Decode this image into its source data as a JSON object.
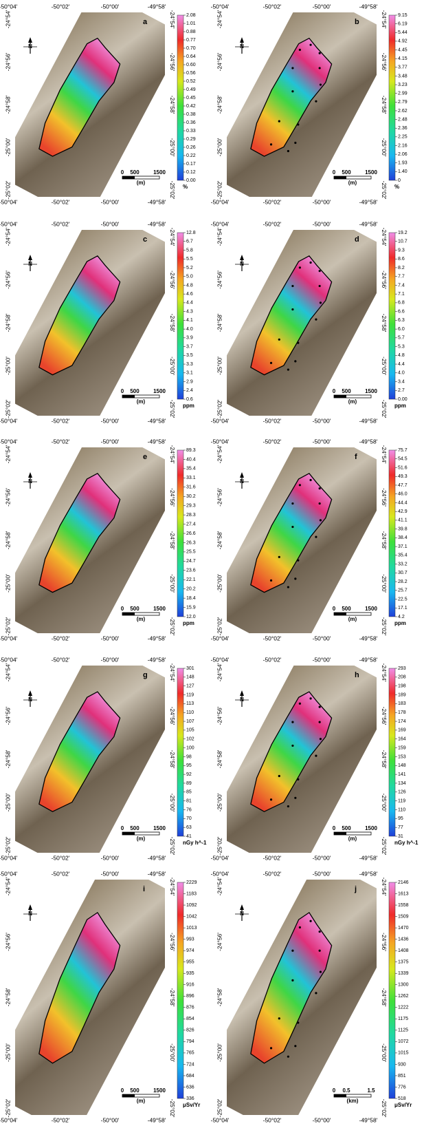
{
  "lon_labels": [
    "-50°04'",
    "-50°02'",
    "-50°00'",
    "-49°58'"
  ],
  "lat_labels": [
    "-24°54'",
    "-24°56'",
    "-24°58'",
    "-25°00'",
    "-25°02'"
  ],
  "north": "N",
  "panels": [
    {
      "letter": "a",
      "unit": "%",
      "scale": [
        "0",
        "500",
        "1500",
        "(m)"
      ],
      "colorbar": [
        "2.08",
        "1.01",
        "0.88",
        "0.77",
        "0.70",
        "0.64",
        "0.60",
        "0.56",
        "0.52",
        "0.49",
        "0.45",
        "0.42",
        "0.38",
        "0.36",
        "0.33",
        "0.29",
        "0.26",
        "0.22",
        "0.17",
        "0.12",
        "0.00"
      ]
    },
    {
      "letter": "b",
      "unit": "%",
      "scale": [
        "0",
        "500",
        "1500",
        "(m)"
      ],
      "colorbar": [
        "9.15",
        "6.19",
        "5.44",
        "4.92",
        "4.45",
        "4.15",
        "3.77",
        "3.48",
        "3.23",
        "2.99",
        "2.79",
        "2.62",
        "2.48",
        "2.36",
        "2.25",
        "2.16",
        "2.06",
        "1.93",
        "1.40",
        "0"
      ]
    },
    {
      "letter": "c",
      "unit": "ppm",
      "scale": [
        "0",
        "500",
        "1500",
        "(m)"
      ],
      "colorbar": [
        "12.8",
        "6.7",
        "5.8",
        "5.5",
        "5.2",
        "5.0",
        "4.8",
        "4.6",
        "4.4",
        "4.3",
        "4.1",
        "4.0",
        "3.9",
        "3.7",
        "3.5",
        "3.3",
        "3.1",
        "2.9",
        "2.4",
        "0.6"
      ]
    },
    {
      "letter": "d",
      "unit": "ppm",
      "scale": [
        "0",
        "500",
        "1500",
        "(m)"
      ],
      "colorbar": [
        "19.2",
        "10.7",
        "9.3",
        "8.6",
        "8.2",
        "7.7",
        "7.4",
        "7.1",
        "6.8",
        "6.6",
        "6.3",
        "6.0",
        "5.7",
        "5.3",
        "4.8",
        "4.4",
        "4.0",
        "3.4",
        "2.7",
        "0.00"
      ]
    },
    {
      "letter": "e",
      "unit": "ppm",
      "scale": [
        "0",
        "500",
        "1500",
        "(m)"
      ],
      "colorbar": [
        "89.3",
        "40.4",
        "35.4",
        "33.1",
        "31.6",
        "30.2",
        "29.3",
        "28.3",
        "27.4",
        "26.6",
        "26.3",
        "25.5",
        "24.7",
        "23.6",
        "22.1",
        "20.2",
        "18.4",
        "15.9",
        "12.0"
      ]
    },
    {
      "letter": "f",
      "unit": "ppm",
      "scale": [
        "0",
        "500",
        "1500",
        "(m)"
      ],
      "colorbar": [
        "75.7",
        "54.5",
        "51.6",
        "49.3",
        "47.7",
        "46.0",
        "44.4",
        "42.9",
        "41.1",
        "39.8",
        "38.4",
        "37.1",
        "35.4",
        "33.2",
        "30.7",
        "28.2",
        "25.7",
        "22.5",
        "17.1",
        "4.2"
      ]
    },
    {
      "letter": "g",
      "unit": "nGy h^-1",
      "scale": [
        "0",
        "500",
        "1500",
        "(m)"
      ],
      "colorbar": [
        "301",
        "148",
        "127",
        "119",
        "113",
        "110",
        "107",
        "105",
        "102",
        "100",
        "98",
        "95",
        "92",
        "89",
        "85",
        "81",
        "76",
        "70",
        "63",
        "41"
      ]
    },
    {
      "letter": "h",
      "unit": "nGy h^-1",
      "scale": [
        "0",
        "500",
        "1500",
        "(m)"
      ],
      "colorbar": [
        "293",
        "208",
        "198",
        "189",
        "183",
        "178",
        "174",
        "169",
        "164",
        "159",
        "153",
        "148",
        "141",
        "134",
        "126",
        "119",
        "110",
        "95",
        "77",
        "31"
      ]
    },
    {
      "letter": "i",
      "unit": "μSv/Yr",
      "scale": [
        "0",
        "500",
        "1500",
        "(m)"
      ],
      "colorbar": [
        "2229",
        "1183",
        "1092",
        "1042",
        "1013",
        "993",
        "974",
        "955",
        "935",
        "916",
        "896",
        "876",
        "854",
        "826",
        "794",
        "765",
        "724",
        "684",
        "636",
        "336"
      ]
    },
    {
      "letter": "j",
      "unit": "μSv/Yr",
      "scale": [
        "0",
        "0.5",
        "1.5",
        "(km)"
      ],
      "colorbar": [
        "2146",
        "1613",
        "1558",
        "1509",
        "1470",
        "1436",
        "1408",
        "1375",
        "1339",
        "1300",
        "1262",
        "1222",
        "1175",
        "1125",
        "1072",
        "1015",
        "930",
        "851",
        "776",
        "518"
      ]
    }
  ]
}
